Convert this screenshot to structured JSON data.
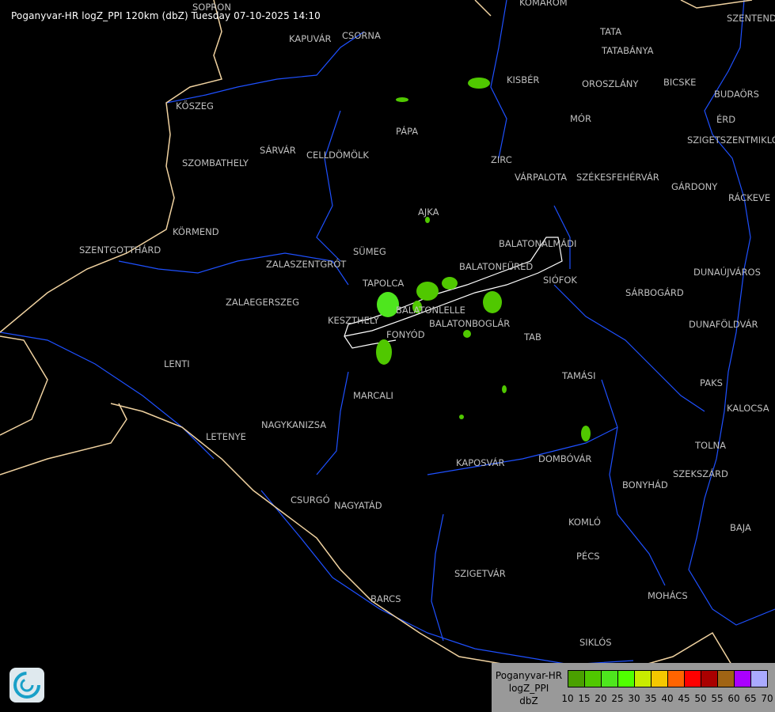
{
  "title": "Poganyvar-HR logZ_PPI 120km (dbZ) Tuesday 07-10-2025 14:10",
  "cities": [
    "SOPRON",
    "KOMÁROM",
    "KAPUVÁR",
    "CSORNA",
    "TATA",
    "TATABÁNYA",
    "KISBÉR",
    "OROSZLÁNY",
    "BICSKE",
    "BUDAÖRS",
    "SZENTENDRE",
    "KŐSZEG",
    "PÁPA",
    "MÓR",
    "ÉRD",
    "SZIGETSZENTMIKLÓS",
    "SÁRVÁR",
    "CELLDÖMÖLK",
    "SZOMBATHELY",
    "ZIRC",
    "VÁRPALOTA",
    "SZÉKESFEHÉRVÁR",
    "GÁRDONY",
    "RÁCKEVE",
    "AJKA",
    "KÖRMEND",
    "BALATONALMÁDI",
    "SZENTGOTTHÁRD",
    "SÜMEG",
    "ZALASZENTGRÓT",
    "BALATONFÜRED",
    "SIÓFOK",
    "DUNAÚJVÁROS",
    "TAPOLCA",
    "ZALAEGERSZEG",
    "SÁRBOGÁRD",
    "BALATONLELLE",
    "KESZTHELY",
    "BALATONBOGLÁR",
    "FONYÓD",
    "DUNAFÖLDVÁR",
    "TAB",
    "LENTI",
    "TAMÁSI",
    "PAKS",
    "MARCALI",
    "KALOCSA",
    "LETENYE",
    "NAGYKANIZSA",
    "TOLNA",
    "KAPOSVÁR",
    "DOMBÓVÁR",
    "SZEKSZÁRD",
    "BONYHÁD",
    "CSURGÓ",
    "NAGYATÁD",
    "KOMLÓ",
    "BAJA",
    "PÉCS",
    "SZIGETVÁR",
    "MOHÁCS",
    "BARCS",
    "SIKLÓS"
  ],
  "legend": {
    "line1": "Poganyvar-HR",
    "line2": "logZ_PPI",
    "line3": "dbZ",
    "ticks": [
      "10",
      "15",
      "20",
      "25",
      "30",
      "35",
      "40",
      "45",
      "50",
      "55",
      "60",
      "65",
      "70"
    ],
    "colors": [
      "#4aa000",
      "#50c800",
      "#4ee61e",
      "#50ff00",
      "#c8eb00",
      "#f5c800",
      "#ff6400",
      "#ff0000",
      "#aa0000",
      "#a06414",
      "#aa00ff",
      "#aaaaff"
    ]
  },
  "colors": {
    "river": "#1e50ff",
    "border": "#f0d2a0",
    "outline": "#ffffff",
    "echo": "#50c800",
    "echo_strong": "#4ee61e"
  },
  "logo_icon": "weather-service-logo-icon"
}
